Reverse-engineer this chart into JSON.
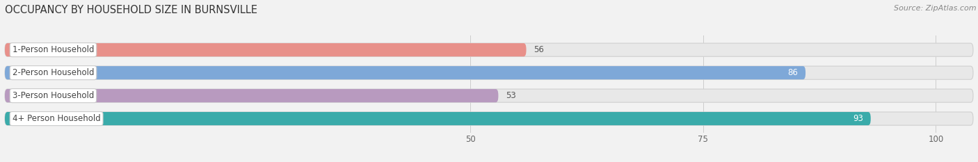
{
  "title": "OCCUPANCY BY HOUSEHOLD SIZE IN BURNSVILLE",
  "source": "Source: ZipAtlas.com",
  "categories": [
    "1-Person Household",
    "2-Person Household",
    "3-Person Household",
    "4+ Person Household"
  ],
  "values": [
    56,
    86,
    53,
    93
  ],
  "bar_colors": [
    "#e8908a",
    "#7ea8d8",
    "#b89abf",
    "#3aabaa"
  ],
  "bar_bg_color": "#e8e8e8",
  "xlim": [
    0,
    104
  ],
  "xticks": [
    50,
    75,
    100
  ],
  "label_bg_color": "#ffffff",
  "fig_bg_color": "#f2f2f2",
  "bar_height": 0.58,
  "title_fontsize": 10.5,
  "label_fontsize": 8.5,
  "value_fontsize": 8.5,
  "source_fontsize": 8,
  "rounding": 0.27
}
